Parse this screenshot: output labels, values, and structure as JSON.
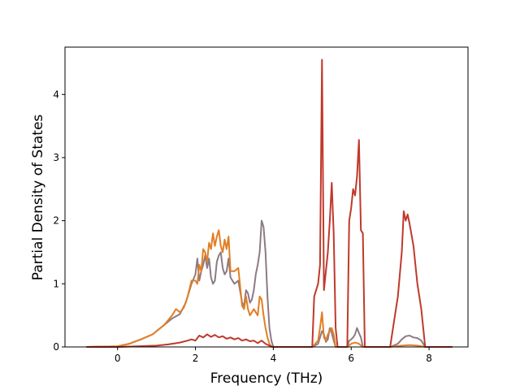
{
  "chart_data": {
    "type": "line",
    "title": "",
    "xlabel": "Frequency (THz)",
    "ylabel": "Partial Density of States",
    "xlim": [
      -1.35,
      9.0
    ],
    "ylim": [
      0,
      4.75
    ],
    "xticks": [
      0,
      2,
      4,
      6,
      8
    ],
    "yticks": [
      0,
      1,
      2,
      3,
      4
    ],
    "grid": false,
    "legend": "none",
    "series": [
      {
        "color": "#8c7b85",
        "x": [
          -0.8,
          0.0,
          0.3,
          0.6,
          0.9,
          1.2,
          1.4,
          1.6,
          1.75,
          1.9,
          2.0,
          2.05,
          2.1,
          2.15,
          2.2,
          2.25,
          2.3,
          2.35,
          2.4,
          2.45,
          2.5,
          2.55,
          2.6,
          2.65,
          2.7,
          2.75,
          2.8,
          2.85,
          2.9,
          3.0,
          3.1,
          3.2,
          3.25,
          3.3,
          3.35,
          3.4,
          3.45,
          3.5,
          3.55,
          3.6,
          3.65,
          3.7,
          3.75,
          3.8,
          3.85,
          3.9,
          3.95,
          4.0,
          5.0,
          5.15,
          5.2,
          5.25,
          5.3,
          5.35,
          5.4,
          5.45,
          5.5,
          5.55,
          5.6,
          5.9,
          5.95,
          6.0,
          6.05,
          6.1,
          6.15,
          6.2,
          6.25,
          6.3,
          7.0,
          7.2,
          7.3,
          7.4,
          7.5,
          7.6,
          7.7,
          7.8,
          7.9,
          8.6
        ],
        "y": [
          0,
          0.01,
          0.05,
          0.12,
          0.2,
          0.35,
          0.45,
          0.52,
          0.7,
          1.0,
          1.15,
          1.4,
          1.05,
          1.2,
          1.3,
          1.45,
          1.25,
          1.4,
          1.1,
          1.0,
          1.05,
          1.35,
          1.45,
          1.5,
          1.25,
          1.15,
          1.2,
          1.4,
          1.1,
          1.0,
          1.05,
          0.7,
          0.65,
          0.9,
          0.85,
          0.7,
          0.75,
          0.9,
          1.15,
          1.3,
          1.5,
          2.0,
          1.9,
          1.5,
          0.8,
          0.3,
          0.1,
          0.0,
          0.0,
          0.05,
          0.15,
          0.25,
          0.2,
          0.08,
          0.12,
          0.3,
          0.22,
          0.1,
          0.0,
          0.0,
          0.1,
          0.12,
          0.15,
          0.2,
          0.3,
          0.22,
          0.15,
          0.0,
          0.0,
          0.05,
          0.12,
          0.17,
          0.18,
          0.15,
          0.14,
          0.1,
          0.0,
          0.0
        ]
      },
      {
        "color": "#e27e24",
        "x": [
          -0.8,
          0.0,
          0.3,
          0.6,
          0.9,
          1.2,
          1.4,
          1.5,
          1.6,
          1.7,
          1.8,
          1.9,
          2.0,
          2.05,
          2.1,
          2.15,
          2.2,
          2.25,
          2.3,
          2.35,
          2.4,
          2.45,
          2.5,
          2.55,
          2.6,
          2.65,
          2.7,
          2.75,
          2.8,
          2.85,
          2.9,
          3.0,
          3.1,
          3.2,
          3.25,
          3.3,
          3.35,
          3.4,
          3.45,
          3.5,
          3.55,
          3.6,
          3.65,
          3.7,
          3.75,
          3.8,
          3.85,
          3.9,
          3.95,
          5.0,
          5.15,
          5.2,
          5.25,
          5.3,
          5.35,
          5.4,
          5.45,
          5.5,
          5.55,
          5.6,
          5.9,
          6.0,
          6.1,
          6.2,
          6.3,
          7.0,
          7.3,
          7.5,
          7.7,
          7.9,
          8.6
        ],
        "y": [
          0,
          0.01,
          0.05,
          0.12,
          0.2,
          0.35,
          0.5,
          0.6,
          0.55,
          0.62,
          0.8,
          1.05,
          1.05,
          1.0,
          1.3,
          1.2,
          1.55,
          1.5,
          1.35,
          1.65,
          1.55,
          1.8,
          1.6,
          1.75,
          1.85,
          1.6,
          1.5,
          1.7,
          1.55,
          1.75,
          1.2,
          1.2,
          1.25,
          0.65,
          0.6,
          0.8,
          0.6,
          0.5,
          0.55,
          0.6,
          0.55,
          0.5,
          0.8,
          0.75,
          0.5,
          0.3,
          0.15,
          0.05,
          0.0,
          0.0,
          0.1,
          0.3,
          0.55,
          0.15,
          0.1,
          0.2,
          0.25,
          0.3,
          0.2,
          0.0,
          0.0,
          0.05,
          0.07,
          0.05,
          0.0,
          0.0,
          0.02,
          0.03,
          0.02,
          0.0,
          0.0
        ]
      },
      {
        "color": "#c0392b",
        "x": [
          -0.8,
          0.0,
          0.5,
          1.0,
          1.3,
          1.6,
          1.8,
          1.9,
          2.0,
          2.1,
          2.2,
          2.3,
          2.4,
          2.5,
          2.6,
          2.7,
          2.8,
          2.9,
          3.0,
          3.1,
          3.2,
          3.3,
          3.4,
          3.5,
          3.6,
          3.7,
          3.8,
          3.9,
          4.0,
          5.0,
          5.05,
          5.1,
          5.15,
          5.2,
          5.25,
          5.3,
          5.35,
          5.4,
          5.45,
          5.5,
          5.55,
          5.6,
          5.65,
          5.9,
          5.95,
          6.0,
          6.05,
          6.1,
          6.15,
          6.2,
          6.25,
          6.3,
          6.35,
          7.0,
          7.1,
          7.2,
          7.3,
          7.35,
          7.4,
          7.45,
          7.5,
          7.6,
          7.7,
          7.8,
          7.9,
          8.6
        ],
        "y": [
          0,
          0.0,
          0.01,
          0.02,
          0.04,
          0.07,
          0.1,
          0.12,
          0.1,
          0.18,
          0.15,
          0.2,
          0.16,
          0.19,
          0.15,
          0.17,
          0.13,
          0.15,
          0.12,
          0.14,
          0.1,
          0.12,
          0.09,
          0.1,
          0.06,
          0.1,
          0.05,
          0.02,
          0.0,
          0.0,
          0.8,
          0.9,
          1.0,
          1.3,
          4.55,
          0.9,
          1.2,
          1.5,
          2.0,
          2.6,
          1.8,
          0.3,
          0.0,
          0.0,
          2.0,
          2.2,
          2.5,
          2.4,
          2.7,
          3.28,
          1.85,
          1.8,
          0.0,
          0.0,
          0.4,
          0.8,
          1.5,
          2.15,
          2.0,
          2.1,
          1.95,
          1.6,
          1.0,
          0.6,
          0.0,
          0.0
        ]
      }
    ]
  }
}
